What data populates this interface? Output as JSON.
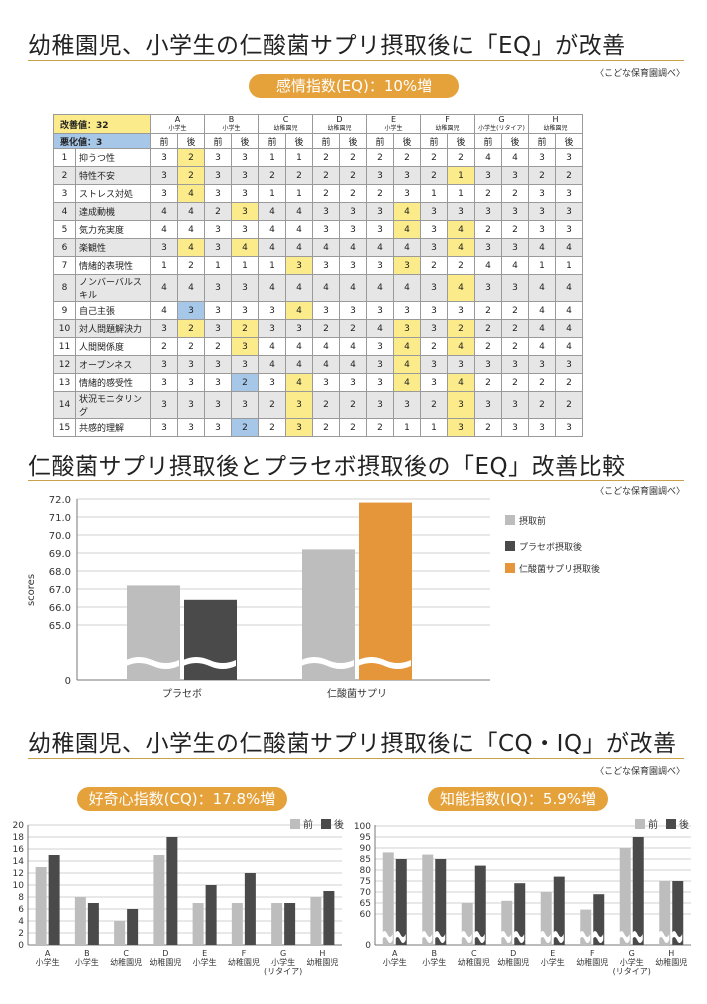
{
  "section1": {
    "title": "幼稚園児、小学生の仁酸菌サプリ摂取後に「EQ」が改善",
    "source": "〈こどな保育園調べ〉",
    "pill": "感情指数(EQ)：10%増",
    "improve_label": "改善値：32",
    "worse_label": "悪化値：3",
    "before": "前",
    "after": "後",
    "groups": [
      {
        "code": "A",
        "sub": "小学生"
      },
      {
        "code": "B",
        "sub": "小学生"
      },
      {
        "code": "C",
        "sub": "幼稚園児"
      },
      {
        "code": "D",
        "sub": "幼稚園児"
      },
      {
        "code": "E",
        "sub": "小学生"
      },
      {
        "code": "F",
        "sub": "幼稚園児"
      },
      {
        "code": "G",
        "sub": "小学生(リタイア)"
      },
      {
        "code": "H",
        "sub": "幼稚園児"
      }
    ],
    "rows": [
      {
        "n": "1",
        "label": "抑うつ性",
        "v": [
          "3",
          "2",
          "3",
          "3",
          "1",
          "1",
          "2",
          "2",
          "2",
          "2",
          "2",
          "2",
          "4",
          "4",
          "3",
          "3"
        ],
        "y": [
          1
        ],
        "b": []
      },
      {
        "n": "2",
        "label": "特性不安",
        "v": [
          "3",
          "2",
          "3",
          "3",
          "2",
          "2",
          "2",
          "2",
          "3",
          "3",
          "2",
          "1",
          "3",
          "3",
          "2",
          "2"
        ],
        "y": [
          1,
          11
        ],
        "b": []
      },
      {
        "n": "3",
        "label": "ストレス対処",
        "v": [
          "3",
          "4",
          "3",
          "3",
          "1",
          "1",
          "2",
          "2",
          "2",
          "3",
          "1",
          "1",
          "2",
          "2",
          "3",
          "3"
        ],
        "y": [
          1
        ],
        "b": []
      },
      {
        "n": "4",
        "label": "達成動機",
        "v": [
          "4",
          "4",
          "2",
          "3",
          "4",
          "4",
          "3",
          "3",
          "3",
          "4",
          "3",
          "3",
          "3",
          "3",
          "3",
          "3"
        ],
        "y": [
          3,
          9
        ],
        "b": []
      },
      {
        "n": "5",
        "label": "気力充実度",
        "v": [
          "4",
          "4",
          "3",
          "3",
          "4",
          "4",
          "3",
          "3",
          "3",
          "4",
          "3",
          "4",
          "2",
          "2",
          "3",
          "3"
        ],
        "y": [
          9,
          11
        ],
        "b": []
      },
      {
        "n": "6",
        "label": "楽観性",
        "v": [
          "3",
          "4",
          "3",
          "4",
          "4",
          "4",
          "4",
          "4",
          "4",
          "4",
          "3",
          "4",
          "3",
          "3",
          "4",
          "4"
        ],
        "y": [
          1,
          3,
          11
        ],
        "b": []
      },
      {
        "n": "7",
        "label": "情緒的表現性",
        "v": [
          "1",
          "2",
          "1",
          "1",
          "1",
          "3",
          "3",
          "3",
          "3",
          "3",
          "2",
          "2",
          "4",
          "4",
          "1",
          "1"
        ],
        "y": [
          5,
          9
        ],
        "b": []
      },
      {
        "n": "8",
        "label": "ノンバーバルスキル",
        "v": [
          "4",
          "4",
          "3",
          "3",
          "4",
          "4",
          "4",
          "4",
          "4",
          "4",
          "3",
          "4",
          "3",
          "3",
          "4",
          "4"
        ],
        "y": [
          11
        ],
        "b": []
      },
      {
        "n": "9",
        "label": "自己主張",
        "v": [
          "4",
          "3",
          "3",
          "3",
          "3",
          "4",
          "3",
          "3",
          "3",
          "3",
          "3",
          "3",
          "2",
          "2",
          "4",
          "4"
        ],
        "y": [
          5
        ],
        "b": [
          1
        ]
      },
      {
        "n": "10",
        "label": "対人問題解決力",
        "v": [
          "3",
          "2",
          "3",
          "2",
          "3",
          "3",
          "2",
          "2",
          "4",
          "3",
          "3",
          "2",
          "2",
          "2",
          "4",
          "4"
        ],
        "y": [
          1,
          3,
          9,
          11
        ],
        "b": []
      },
      {
        "n": "11",
        "label": "人間関係度",
        "v": [
          "2",
          "2",
          "2",
          "3",
          "4",
          "4",
          "4",
          "4",
          "3",
          "4",
          "2",
          "4",
          "2",
          "2",
          "4",
          "4"
        ],
        "y": [
          3,
          9,
          11
        ],
        "b": []
      },
      {
        "n": "12",
        "label": "オープンネス",
        "v": [
          "3",
          "3",
          "3",
          "3",
          "4",
          "4",
          "4",
          "4",
          "3",
          "4",
          "3",
          "3",
          "3",
          "3",
          "3",
          "3"
        ],
        "y": [
          9
        ],
        "b": []
      },
      {
        "n": "13",
        "label": "情緒的感受性",
        "v": [
          "3",
          "3",
          "3",
          "2",
          "3",
          "4",
          "3",
          "3",
          "3",
          "4",
          "3",
          "4",
          "2",
          "2",
          "2",
          "2"
        ],
        "y": [
          5,
          9,
          11
        ],
        "b": [
          3
        ]
      },
      {
        "n": "14",
        "label": "状況モニタリング",
        "v": [
          "3",
          "3",
          "3",
          "3",
          "2",
          "3",
          "2",
          "2",
          "3",
          "3",
          "2",
          "3",
          "3",
          "3",
          "2",
          "2"
        ],
        "y": [
          5,
          11
        ],
        "b": []
      },
      {
        "n": "15",
        "label": "共感的理解",
        "v": [
          "3",
          "3",
          "3",
          "2",
          "2",
          "3",
          "2",
          "2",
          "2",
          "1",
          "1",
          "3",
          "2",
          "3",
          "3",
          "3"
        ],
        "y": [
          5,
          11
        ],
        "b": [
          3
        ]
      }
    ]
  },
  "section2": {
    "title": "仁酸菌サプリ摂取後とプラセボ摂取後の「EQ」改善比較",
    "source": "〈こどな保育園調べ〉"
  },
  "section3": {
    "title": "幼稚園児、小学生の仁酸菌サプリ摂取後に「CQ・IQ」が改善",
    "source": "〈こどな保育園調べ〉",
    "pill_cq": "好奇心指数(CQ)：17.8%増",
    "pill_iq": "知能指数(IQ)：5.9%増"
  },
  "colors": {
    "before": "#bdbdbd",
    "placebo": "#4a4a4a",
    "after_supp": "#e5963a",
    "accent": "#e5a13a"
  },
  "chart_data": [
    {
      "type": "bar",
      "title": "",
      "categories": [
        "プラセボ",
        "仁酸菌サプリ"
      ],
      "series": [
        {
          "name": "摂取前",
          "values": [
            67.2,
            69.2
          ]
        },
        {
          "name": "プラセボ摂取後",
          "values": [
            66.4,
            null
          ]
        },
        {
          "name": "仁酸菌サプリ摂取後",
          "values": [
            null,
            71.8
          ]
        }
      ],
      "ylabel": "scores",
      "yticks": [
        "72.0",
        "71.0",
        "70.0",
        "69.0",
        "68.0",
        "67.0",
        "66.0",
        "65.0",
        "0"
      ],
      "ylim": [
        65,
        72
      ],
      "axis_break": true
    },
    {
      "type": "bar",
      "title": "",
      "categories": [
        "A",
        "B",
        "C",
        "D",
        "E",
        "F",
        "G",
        "H"
      ],
      "category_subs": [
        "小学生",
        "小学生",
        "幼稚園児",
        "幼稚園児",
        "小学生",
        "幼稚園児",
        "小学生",
        "幼稚園児"
      ],
      "category_subs2": [
        "",
        "",
        "",
        "",
        "",
        "",
        "(リタイア)",
        ""
      ],
      "series": [
        {
          "name": "前",
          "values": [
            13,
            8,
            4,
            15,
            7,
            7,
            7,
            8
          ]
        },
        {
          "name": "後",
          "values": [
            15,
            7,
            6,
            18,
            10,
            12,
            7,
            9
          ]
        }
      ],
      "yticks": [
        "20",
        "18",
        "16",
        "14",
        "12",
        "10",
        "8",
        "6",
        "4",
        "2",
        "0"
      ],
      "ylim": [
        0,
        20
      ]
    },
    {
      "type": "bar",
      "title": "",
      "categories": [
        "A",
        "B",
        "C",
        "D",
        "E",
        "F",
        "G",
        "H"
      ],
      "category_subs": [
        "小学生",
        "小学生",
        "幼稚園児",
        "幼稚園児",
        "小学生",
        "幼稚園児",
        "小学生",
        "幼稚園児"
      ],
      "category_subs2": [
        "",
        "",
        "",
        "",
        "",
        "",
        "(リタイア)",
        ""
      ],
      "series": [
        {
          "name": "前",
          "values": [
            88,
            87,
            65,
            66,
            70,
            62,
            90,
            75
          ]
        },
        {
          "name": "後",
          "values": [
            85,
            85,
            82,
            74,
            77,
            69,
            95,
            75
          ]
        }
      ],
      "yticks": [
        "100",
        "95",
        "90",
        "85",
        "80",
        "75",
        "70",
        "65",
        "60",
        "0"
      ],
      "ylim": [
        60,
        100
      ],
      "axis_break": true
    }
  ]
}
